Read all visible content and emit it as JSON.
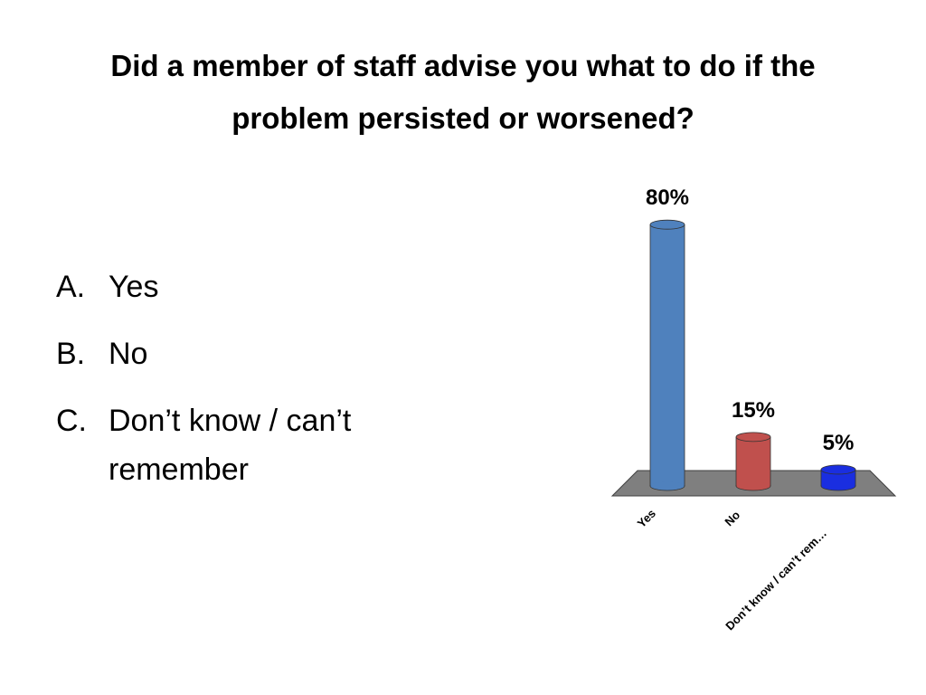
{
  "chart_data": {
    "type": "bar3d",
    "title": "Did a member of staff advise you what to do if the problem persisted or worsened?",
    "categories": [
      "Yes",
      "No",
      "Don’t know / can’t rem…"
    ],
    "values": [
      80,
      15,
      5
    ],
    "value_labels": [
      "80%",
      "15%",
      "5%"
    ],
    "colors": [
      "#4f81bd",
      "#c0504d",
      "#1a2ee0"
    ]
  },
  "list": [
    {
      "marker": "A.",
      "text": "Yes"
    },
    {
      "marker": "B.",
      "text": "No"
    },
    {
      "marker": "C.",
      "text": "Don’t know / can’t remember"
    }
  ]
}
